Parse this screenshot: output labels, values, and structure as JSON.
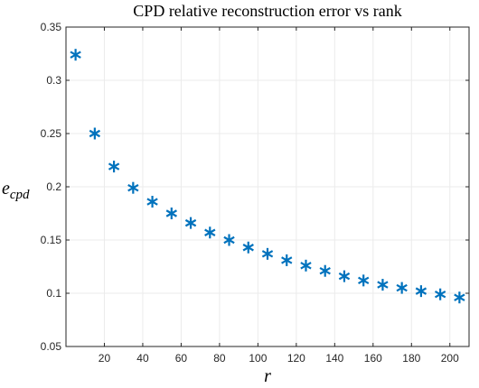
{
  "chart_data": {
    "type": "scatter",
    "title": "CPD relative reconstruction error vs rank",
    "xlabel": "r",
    "ylabel": {
      "base": "e",
      "subscript": "cpd"
    },
    "xlim": [
      0,
      210
    ],
    "ylim": [
      0.05,
      0.35
    ],
    "xticks": [
      20,
      40,
      60,
      80,
      100,
      120,
      140,
      160,
      180,
      200
    ],
    "yticks": [
      0.05,
      0.1,
      0.15,
      0.2,
      0.25,
      0.3,
      0.35
    ],
    "grid": true,
    "marker": "asterisk",
    "series": [
      {
        "color": "#0072BD",
        "x": [
          5,
          15,
          25,
          35,
          45,
          55,
          65,
          75,
          85,
          95,
          105,
          115,
          125,
          135,
          145,
          155,
          165,
          175,
          185,
          195,
          205
        ],
        "y": [
          0.324,
          0.25,
          0.219,
          0.199,
          0.186,
          0.175,
          0.166,
          0.157,
          0.15,
          0.143,
          0.137,
          0.131,
          0.126,
          0.121,
          0.116,
          0.112,
          0.108,
          0.105,
          0.102,
          0.099,
          0.096
        ]
      }
    ]
  },
  "colors": {
    "grid": "#ebebeb",
    "axis": "#262626",
    "marker": "#0072BD"
  }
}
